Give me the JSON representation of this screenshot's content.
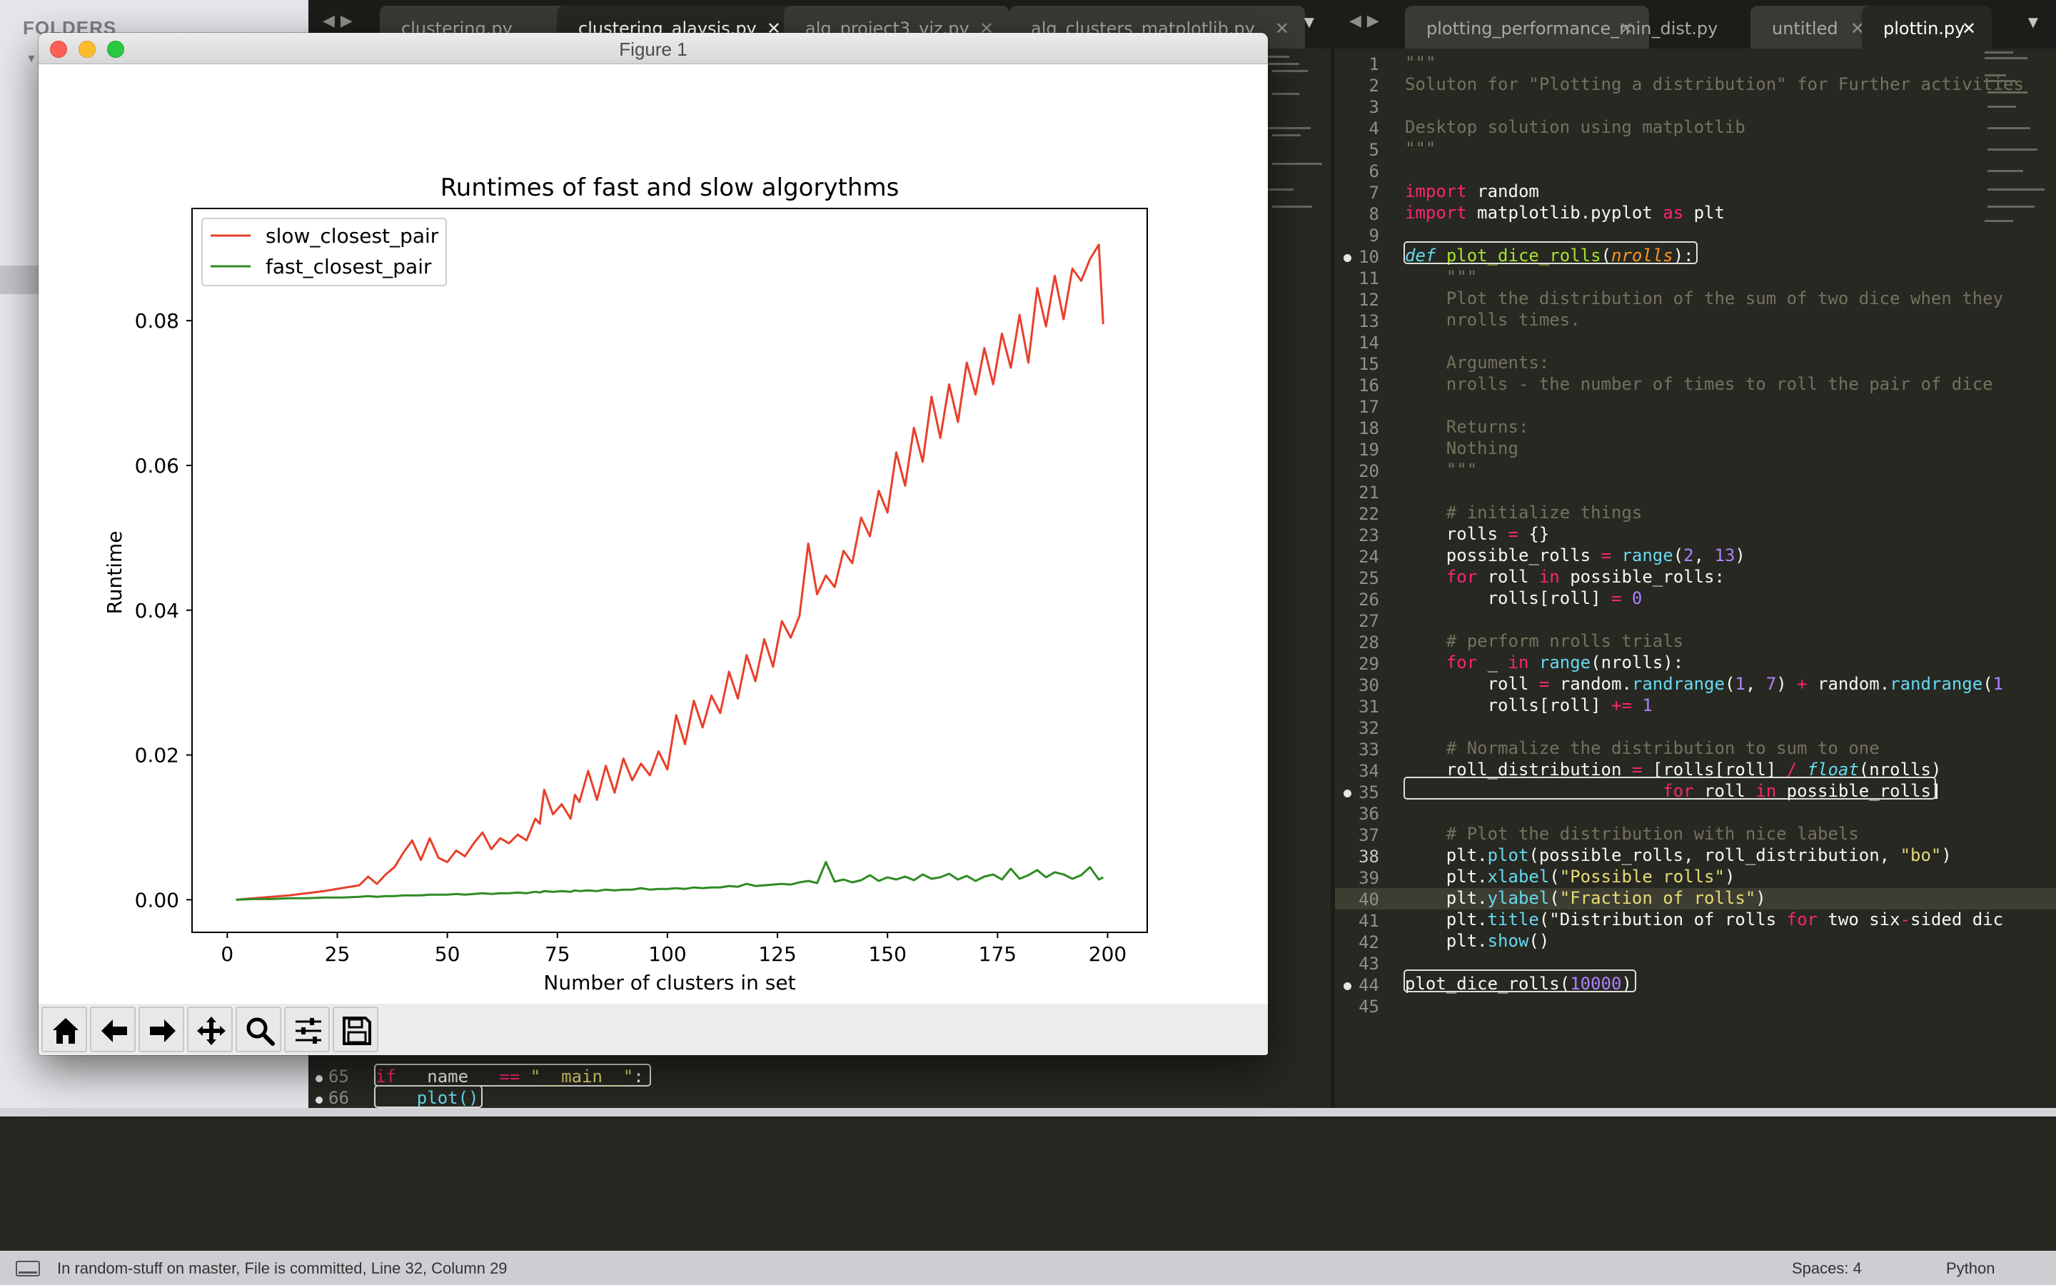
{
  "sidebar": {
    "header": "FOLDERS"
  },
  "left_pane": {
    "tabs": [
      {
        "label": "clustering.py",
        "active": false
      },
      {
        "label": "clustering_alaysis.py",
        "active": true
      },
      {
        "label": "alg_project3_viz.py",
        "active": false
      },
      {
        "label": "alg_clusters_matplotlib.py",
        "active": false
      }
    ],
    "visible_lines": [
      {
        "number": "65",
        "code_kw": "if",
        "code_rest": "__name__",
        "code_op": "==",
        "code_str": "\"__main__\"",
        "code_end": ":"
      },
      {
        "number": "66",
        "code_indent": "    ",
        "code_call": "plot()"
      }
    ]
  },
  "right_pane": {
    "tabs": [
      {
        "label": "plotting_performance_min_dist.py",
        "active": false
      },
      {
        "label": "untitled",
        "active": false
      },
      {
        "label": "plottin.py",
        "active": true
      }
    ],
    "current_line": "38",
    "code_lines": [
      "\"\"\"",
      "Soluton for \"Plotting a distribution\" for Further activities",
      "",
      "Desktop solution using matplotlib",
      "\"\"\"",
      "",
      "import random",
      "import matplotlib.pyplot as plt",
      "",
      "def plot_dice_rolls(nrolls):",
      "    \"\"\"",
      "    Plot the distribution of the sum of two dice when they",
      "    nrolls times.",
      "",
      "    Arguments:",
      "    nrolls - the number of times to roll the pair of dice",
      "",
      "    Returns:",
      "    Nothing",
      "    \"\"\"",
      "",
      "    # initialize things",
      "    rolls = {}",
      "    possible_rolls = range(2, 13)",
      "    for roll in possible_rolls:",
      "        rolls[roll] = 0",
      "",
      "    # perform nrolls trials",
      "    for _ in range(nrolls):",
      "        roll = random.randrange(1, 7) + random.randrange(1",
      "        rolls[roll] += 1",
      "",
      "    # Normalize the distribution to sum to one",
      "    roll_distribution = [rolls[roll] / float(nrolls)",
      "                         for roll in possible_rolls]",
      "",
      "    # Plot the distribution with nice labels",
      "    plt.plot(possible_rolls, roll_distribution, \"bo\")",
      "    plt.xlabel(\"Possible rolls\")",
      "    plt.ylabel(\"Fraction of rolls\")",
      "    plt.title(\"Distribution of rolls for two six-sided dic",
      "    plt.show()",
      "",
      "plot_dice_rolls(10000)",
      ""
    ]
  },
  "figure_window": {
    "title": "Figure 1",
    "toolbar": {
      "home": "home-icon",
      "back": "arrow-left-icon",
      "forward": "arrow-right-icon",
      "pan": "move-icon",
      "zoom": "search-icon",
      "configure": "sliders-icon",
      "save": "save-icon"
    }
  },
  "status_bar": {
    "text": "In random-stuff on master, File is committed, Line 32, Column 29",
    "spaces": "Spaces: 4",
    "language": "Python"
  },
  "colors": {
    "slow_series": "#e8402a",
    "fast_series": "#2e8b23",
    "editor_bg": "#272822",
    "keyword": "#f92672",
    "string": "#e6db74",
    "number": "#ae81ff",
    "function": "#a6e22e"
  },
  "chart_data": {
    "type": "line",
    "title": "Runtimes of fast and slow algorythms",
    "xlabel": "Number of clusters in set",
    "ylabel": "Runtime",
    "xlim": [
      -8,
      209
    ],
    "ylim": [
      -0.0045,
      0.0955
    ],
    "xticks": [
      0,
      25,
      50,
      75,
      100,
      125,
      150,
      175,
      200
    ],
    "yticks": [
      0.0,
      0.02,
      0.04,
      0.06,
      0.08
    ],
    "ytick_labels": [
      "0.00",
      "0.02",
      "0.04",
      "0.06",
      "0.08"
    ],
    "legend_position": "upper-left",
    "grid": false,
    "x": [
      2,
      6,
      10,
      14,
      18,
      22,
      26,
      30,
      32,
      34,
      36,
      38,
      40,
      42,
      44,
      46,
      48,
      50,
      52,
      54,
      56,
      58,
      60,
      62,
      64,
      66,
      68,
      70,
      71,
      72,
      74,
      76,
      78,
      79,
      80,
      82,
      84,
      86,
      88,
      90,
      92,
      94,
      96,
      98,
      100,
      102,
      104,
      106,
      108,
      110,
      112,
      114,
      116,
      118,
      120,
      122,
      124,
      126,
      128,
      130,
      132,
      134,
      136,
      138,
      140,
      142,
      144,
      146,
      148,
      150,
      152,
      154,
      156,
      158,
      160,
      162,
      164,
      166,
      168,
      170,
      172,
      174,
      176,
      178,
      180,
      182,
      184,
      186,
      188,
      190,
      192,
      194,
      196,
      198,
      199
    ],
    "series": [
      {
        "name": "slow_closest_pair",
        "values": [
          0.0,
          0.0002,
          0.0004,
          0.0006,
          0.0009,
          0.0012,
          0.0016,
          0.002,
          0.0032,
          0.0022,
          0.0035,
          0.0045,
          0.0065,
          0.0082,
          0.0055,
          0.0085,
          0.0058,
          0.0052,
          0.0068,
          0.006,
          0.0078,
          0.0093,
          0.007,
          0.0085,
          0.0078,
          0.009,
          0.0082,
          0.0112,
          0.0105,
          0.0152,
          0.0118,
          0.0132,
          0.0112,
          0.0145,
          0.0135,
          0.0178,
          0.0138,
          0.0185,
          0.0148,
          0.0195,
          0.0165,
          0.0188,
          0.0172,
          0.0205,
          0.018,
          0.0255,
          0.0215,
          0.0275,
          0.0238,
          0.0282,
          0.0258,
          0.0315,
          0.0278,
          0.0338,
          0.0302,
          0.036,
          0.0322,
          0.0385,
          0.0362,
          0.0392,
          0.0492,
          0.0422,
          0.0448,
          0.0432,
          0.0482,
          0.0465,
          0.0528,
          0.0502,
          0.0565,
          0.0535,
          0.0618,
          0.0572,
          0.0652,
          0.0605,
          0.0695,
          0.0638,
          0.0712,
          0.066,
          0.0742,
          0.0698,
          0.0762,
          0.0712,
          0.0782,
          0.0735,
          0.0808,
          0.0742,
          0.0845,
          0.0792,
          0.0862,
          0.0802,
          0.0872,
          0.0855,
          0.0885,
          0.0905,
          0.0795
        ]
      },
      {
        "name": "fast_closest_pair",
        "values": [
          0.0,
          0.0001,
          0.0001,
          0.0002,
          0.0002,
          0.0003,
          0.0003,
          0.0004,
          0.0005,
          0.0004,
          0.0005,
          0.0005,
          0.0006,
          0.0006,
          0.0006,
          0.0007,
          0.0007,
          0.0007,
          0.0008,
          0.0007,
          0.0008,
          0.0009,
          0.0008,
          0.0009,
          0.0009,
          0.001,
          0.0009,
          0.0011,
          0.001,
          0.0012,
          0.0011,
          0.0012,
          0.0011,
          0.0013,
          0.0012,
          0.0013,
          0.0012,
          0.0014,
          0.0013,
          0.0014,
          0.0014,
          0.0016,
          0.0014,
          0.0015,
          0.0015,
          0.0016,
          0.0015,
          0.0017,
          0.0016,
          0.0017,
          0.0017,
          0.0019,
          0.0018,
          0.0022,
          0.0019,
          0.002,
          0.0021,
          0.0022,
          0.0021,
          0.0024,
          0.0026,
          0.0023,
          0.0052,
          0.0025,
          0.0028,
          0.0024,
          0.0027,
          0.0034,
          0.0026,
          0.0031,
          0.0028,
          0.0032,
          0.0027,
          0.0035,
          0.0029,
          0.0031,
          0.0036,
          0.0028,
          0.0033,
          0.0026,
          0.0032,
          0.0035,
          0.0028,
          0.0043,
          0.0029,
          0.0034,
          0.0041,
          0.0031,
          0.0038,
          0.0035,
          0.0029,
          0.0034,
          0.0045,
          0.0028,
          0.0031
        ]
      }
    ]
  }
}
